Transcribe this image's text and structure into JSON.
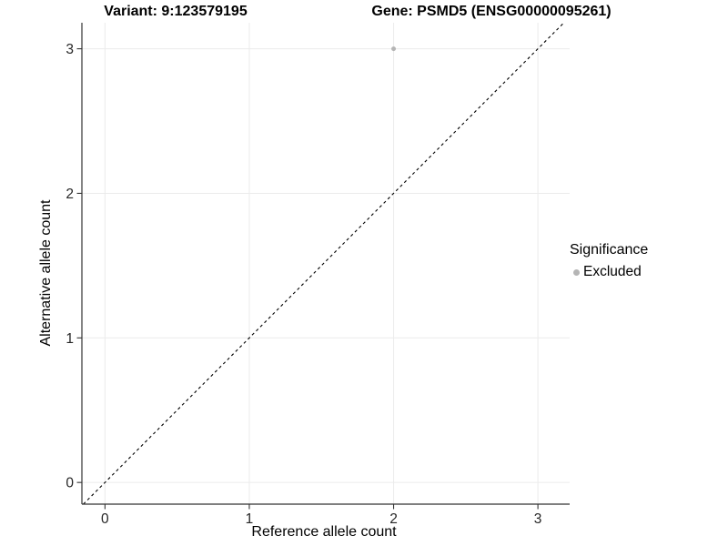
{
  "header": {
    "variant_title": "Variant: 9:123579195",
    "gene_title": "Gene: PSMD5 (ENSG00000095261)"
  },
  "axes": {
    "x_label": "Reference allele count",
    "y_label": "Alternative allele count"
  },
  "legend": {
    "title": "Significance",
    "items": [
      {
        "label": "Excluded",
        "color": "#b5b5b5"
      }
    ]
  },
  "colors": {
    "background": "#ffffff",
    "gridline": "#ebebeb",
    "axis_line": "#333333",
    "tick_text": "#262626",
    "reference_line": "#000000",
    "excluded_point": "#b5b5b5"
  },
  "chart_data": {
    "type": "scatter",
    "title": "Variant: 9:123579195 — Gene: PSMD5 (ENSG00000095261)",
    "xlabel": "Reference allele count",
    "ylabel": "Alternative allele count",
    "xlim": [
      -0.16,
      3.22
    ],
    "ylim": [
      -0.15,
      3.18
    ],
    "x_ticks": [
      0,
      1,
      2,
      3
    ],
    "y_ticks": [
      0,
      1,
      2,
      3
    ],
    "grid": true,
    "legend_position": "right",
    "series": [
      {
        "name": "Excluded",
        "color": "#b5b5b5",
        "point_radius": 2.5,
        "points": [
          {
            "x": 2,
            "y": 3
          }
        ]
      }
    ],
    "reference_line": {
      "kind": "identity",
      "style": "dashed",
      "color": "#000000"
    }
  }
}
